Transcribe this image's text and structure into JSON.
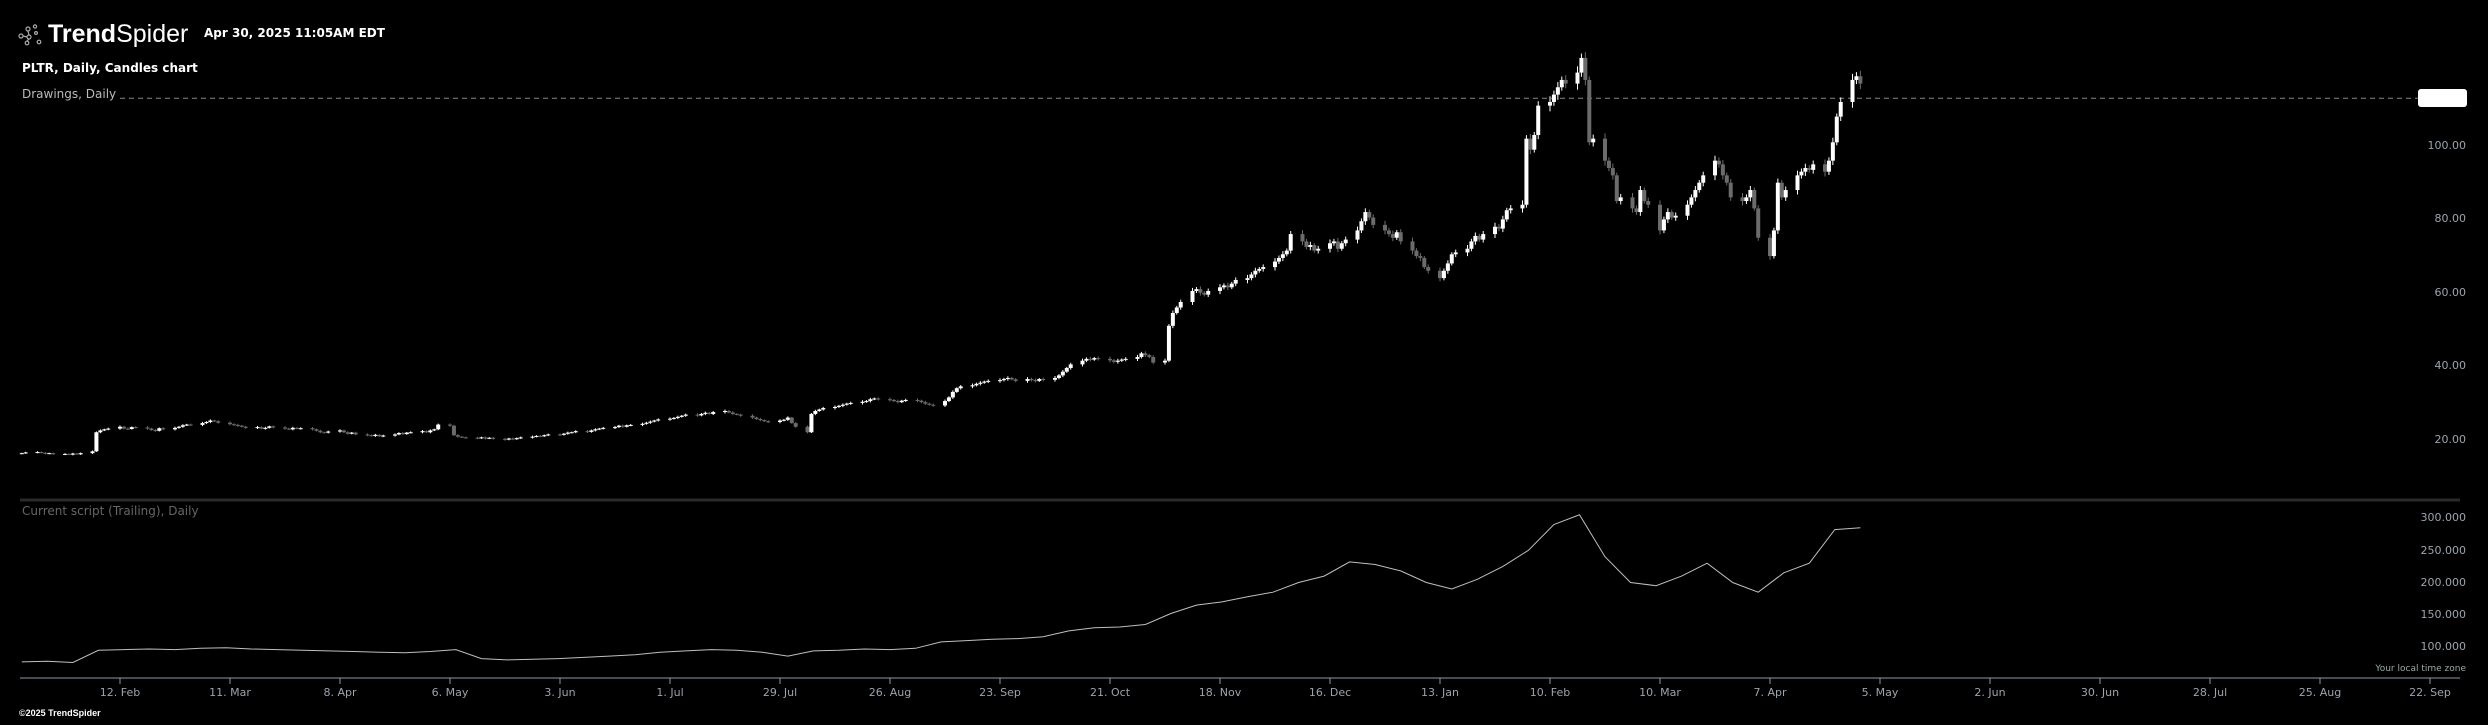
{
  "header": {
    "brand_bold": "Trend",
    "brand_light": "Spider",
    "timestamp": "Apr 30, 2025 11:05AM EDT",
    "symbol_label": "PLTR, Daily, Candles chart",
    "drawings_label": "Drawings, Daily"
  },
  "lower_pane": {
    "label": "Current script (Trailing), Daily"
  },
  "footer": {
    "copyright": "©2025 TrendSpider",
    "timezone": "Your local time zone"
  },
  "colors": {
    "background": "#000000",
    "up": "#ffffff",
    "down": "#6b6b6b",
    "axis": "#9aa4ad",
    "line": "#bfbfbf"
  },
  "chart_data": [
    {
      "type": "candlestick",
      "title": "PLTR, Daily, Candles chart",
      "start_date": "2024-01-18",
      "note": "daily closes, consecutive weekdays from start_date",
      "closes": [
        16.3,
        16.5,
        16.6,
        16.4,
        16.2,
        16.3,
        16.0,
        16.1,
        15.9,
        16.2,
        16.0,
        16.3,
        16.8,
        22.0,
        22.5,
        22.8,
        23.0,
        23.5,
        23.0,
        22.9,
        23.4,
        23.3,
        23.0,
        22.6,
        22.4,
        23.1,
        22.8,
        23.2,
        23.5,
        23.9,
        24.1,
        24.0,
        24.5,
        24.8,
        25.2,
        25.0,
        24.6,
        24.2,
        24.0,
        23.8,
        23.5,
        23.2,
        23.4,
        23.0,
        23.2,
        23.6,
        23.3,
        23.0,
        22.8,
        23.2,
        23.0,
        23.1,
        22.8,
        22.4,
        22.0,
        21.9,
        22.2,
        22.5,
        22.0,
        21.6,
        21.9,
        21.4,
        21.2,
        21.0,
        21.3,
        20.9,
        21.1,
        21.4,
        21.8,
        21.5,
        21.9,
        22.0,
        22.3,
        22.0,
        22.5,
        22.8,
        24.1,
        23.8,
        21.2,
        20.8,
        20.6,
        20.5,
        20.4,
        20.6,
        20.3,
        20.5,
        20.2,
        20.0,
        20.3,
        20.1,
        20.4,
        20.6,
        20.8,
        21.0,
        20.9,
        21.2,
        21.4,
        21.3,
        21.6,
        21.9,
        22.0,
        22.3,
        22.1,
        22.5,
        22.8,
        23.0,
        23.2,
        23.4,
        23.8,
        23.5,
        23.9,
        24.0,
        24.3,
        24.6,
        24.9,
        25.2,
        25.5,
        25.7,
        25.9,
        26.2,
        26.5,
        26.8,
        26.6,
        27.0,
        27.3,
        27.0,
        27.5,
        27.8,
        27.4,
        27.0,
        26.8,
        26.5,
        26.0,
        25.6,
        25.3,
        25.0,
        24.8,
        25.2,
        25.4,
        26.0,
        24.5,
        23.5,
        22.0,
        27.0,
        27.8,
        28.2,
        28.6,
        28.9,
        29.2,
        29.5,
        29.8,
        30.0,
        30.3,
        30.5,
        31.0,
        31.2,
        31.0,
        30.8,
        30.5,
        30.2,
        30.6,
        30.8,
        30.6,
        30.2,
        29.8,
        29.5,
        29.3,
        30.5,
        31.5,
        33.0,
        34.0,
        34.5,
        34.8,
        35.2,
        35.5,
        35.8,
        36.0,
        36.2,
        36.5,
        36.8,
        36.4,
        36.0,
        36.5,
        36.2,
        36.0,
        36.5,
        36.3,
        36.8,
        37.5,
        38.5,
        39.5,
        40.5,
        41.5,
        42.0,
        41.8,
        42.2,
        42.0,
        41.6,
        41.2,
        41.5,
        41.8,
        42.0,
        42.5,
        43.5,
        43.0,
        42.5,
        41.0,
        41.5,
        51.0,
        54.5,
        56.0,
        57.5,
        60.5,
        61.0,
        60.0,
        59.5,
        60.5,
        61.5,
        62.0,
        61.5,
        62.5,
        63.5,
        64.0,
        65.0,
        66.0,
        66.5,
        67.0,
        68.5,
        69.5,
        70.5,
        71.5,
        76.0,
        74.0,
        72.5,
        73.0,
        71.5,
        72.0,
        73.5,
        74.0,
        72.0,
        73.5,
        74.5,
        77.0,
        79.5,
        82.0,
        80.5,
        78.5,
        77.0,
        76.0,
        75.0,
        76.5,
        74.0,
        71.5,
        70.0,
        69.5,
        67.0,
        66.0,
        64.0,
        66.0,
        68.0,
        70.5,
        71.0,
        72.0,
        74.0,
        75.5,
        74.5,
        76.0,
        78.0,
        77.5,
        80.0,
        82.5,
        83.0,
        84.0,
        102.0,
        99.0,
        103.0,
        111.0,
        112.0,
        114.0,
        116.0,
        118.0,
        117.0,
        120.0,
        124.0,
        118.0,
        101.0,
        102.0,
        96.0,
        94.0,
        92.0,
        85.0,
        86.0,
        83.0,
        82.0,
        88.0,
        85.0,
        84.0,
        77.0,
        80.0,
        82.0,
        80.5,
        81.0,
        84.0,
        86.0,
        88.0,
        90.0,
        92.0,
        96.0,
        95.0,
        92.0,
        90.0,
        86.0,
        85.0,
        86.0,
        88.0,
        83.0,
        75.0,
        70.0,
        77.0,
        90.0,
        86.0,
        88.0,
        92.0,
        93.0,
        94.0,
        93.5,
        95.0,
        93.0,
        96.0,
        101.0,
        108.0,
        112.0,
        118.0,
        119.0,
        117.0
      ],
      "current_price_line": 113,
      "y_ticks": [
        "100.00",
        "80.00",
        "60.00",
        "40.00",
        "20.00"
      ],
      "y_tick_values": [
        100,
        80,
        60,
        40,
        20
      ]
    },
    {
      "type": "line",
      "title": "Current script (Trailing), Daily",
      "start_date": "2024-01-18",
      "end_date": "2025-04-30",
      "values": [
        77,
        78,
        76,
        95,
        96,
        97,
        96,
        98,
        99,
        97,
        96,
        95,
        94,
        93,
        92,
        91,
        93,
        96,
        82,
        80,
        81,
        82,
        84,
        86,
        88,
        92,
        94,
        96,
        95,
        92,
        86,
        94,
        95,
        97,
        96,
        98,
        108,
        110,
        112,
        113,
        116,
        125,
        130,
        131,
        135,
        152,
        165,
        170,
        178,
        185,
        200,
        210,
        232,
        228,
        218,
        200,
        190,
        205,
        225,
        250,
        290,
        305,
        240,
        200,
        195,
        210,
        230,
        200,
        185,
        215,
        230,
        282,
        285
      ],
      "y_ticks": [
        "300.000",
        "250.000",
        "200.000",
        "150.000",
        "100.000"
      ],
      "y_tick_values": [
        300,
        250,
        200,
        150,
        100
      ]
    }
  ],
  "x_axis": {
    "ticks": [
      {
        "label": "12. Feb",
        "date": "2024-02-12"
      },
      {
        "label": "11. Mar",
        "date": "2024-03-11"
      },
      {
        "label": "8. Apr",
        "date": "2024-04-08"
      },
      {
        "label": "6. May",
        "date": "2024-05-06"
      },
      {
        "label": "3. Jun",
        "date": "2024-06-03"
      },
      {
        "label": "1. Jul",
        "date": "2024-07-01"
      },
      {
        "label": "29. Jul",
        "date": "2024-07-29"
      },
      {
        "label": "26. Aug",
        "date": "2024-08-26"
      },
      {
        "label": "23. Sep",
        "date": "2024-09-23"
      },
      {
        "label": "21. Oct",
        "date": "2024-10-21"
      },
      {
        "label": "18. Nov",
        "date": "2024-11-18"
      },
      {
        "label": "16. Dec",
        "date": "2024-12-16"
      },
      {
        "label": "13. Jan",
        "date": "2025-01-13"
      },
      {
        "label": "10. Feb",
        "date": "2025-02-10"
      },
      {
        "label": "10. Mar",
        "date": "2025-03-10"
      },
      {
        "label": "7. Apr",
        "date": "2025-04-07"
      },
      {
        "label": "5. May",
        "date": "2025-05-05"
      },
      {
        "label": "2. Jun",
        "date": "2025-06-02"
      },
      {
        "label": "30. Jun",
        "date": "2025-06-30"
      },
      {
        "label": "28. Jul",
        "date": "2025-07-28"
      },
      {
        "label": "25. Aug",
        "date": "2025-08-25"
      },
      {
        "label": "22. Sep",
        "date": "2025-09-22"
      }
    ]
  }
}
